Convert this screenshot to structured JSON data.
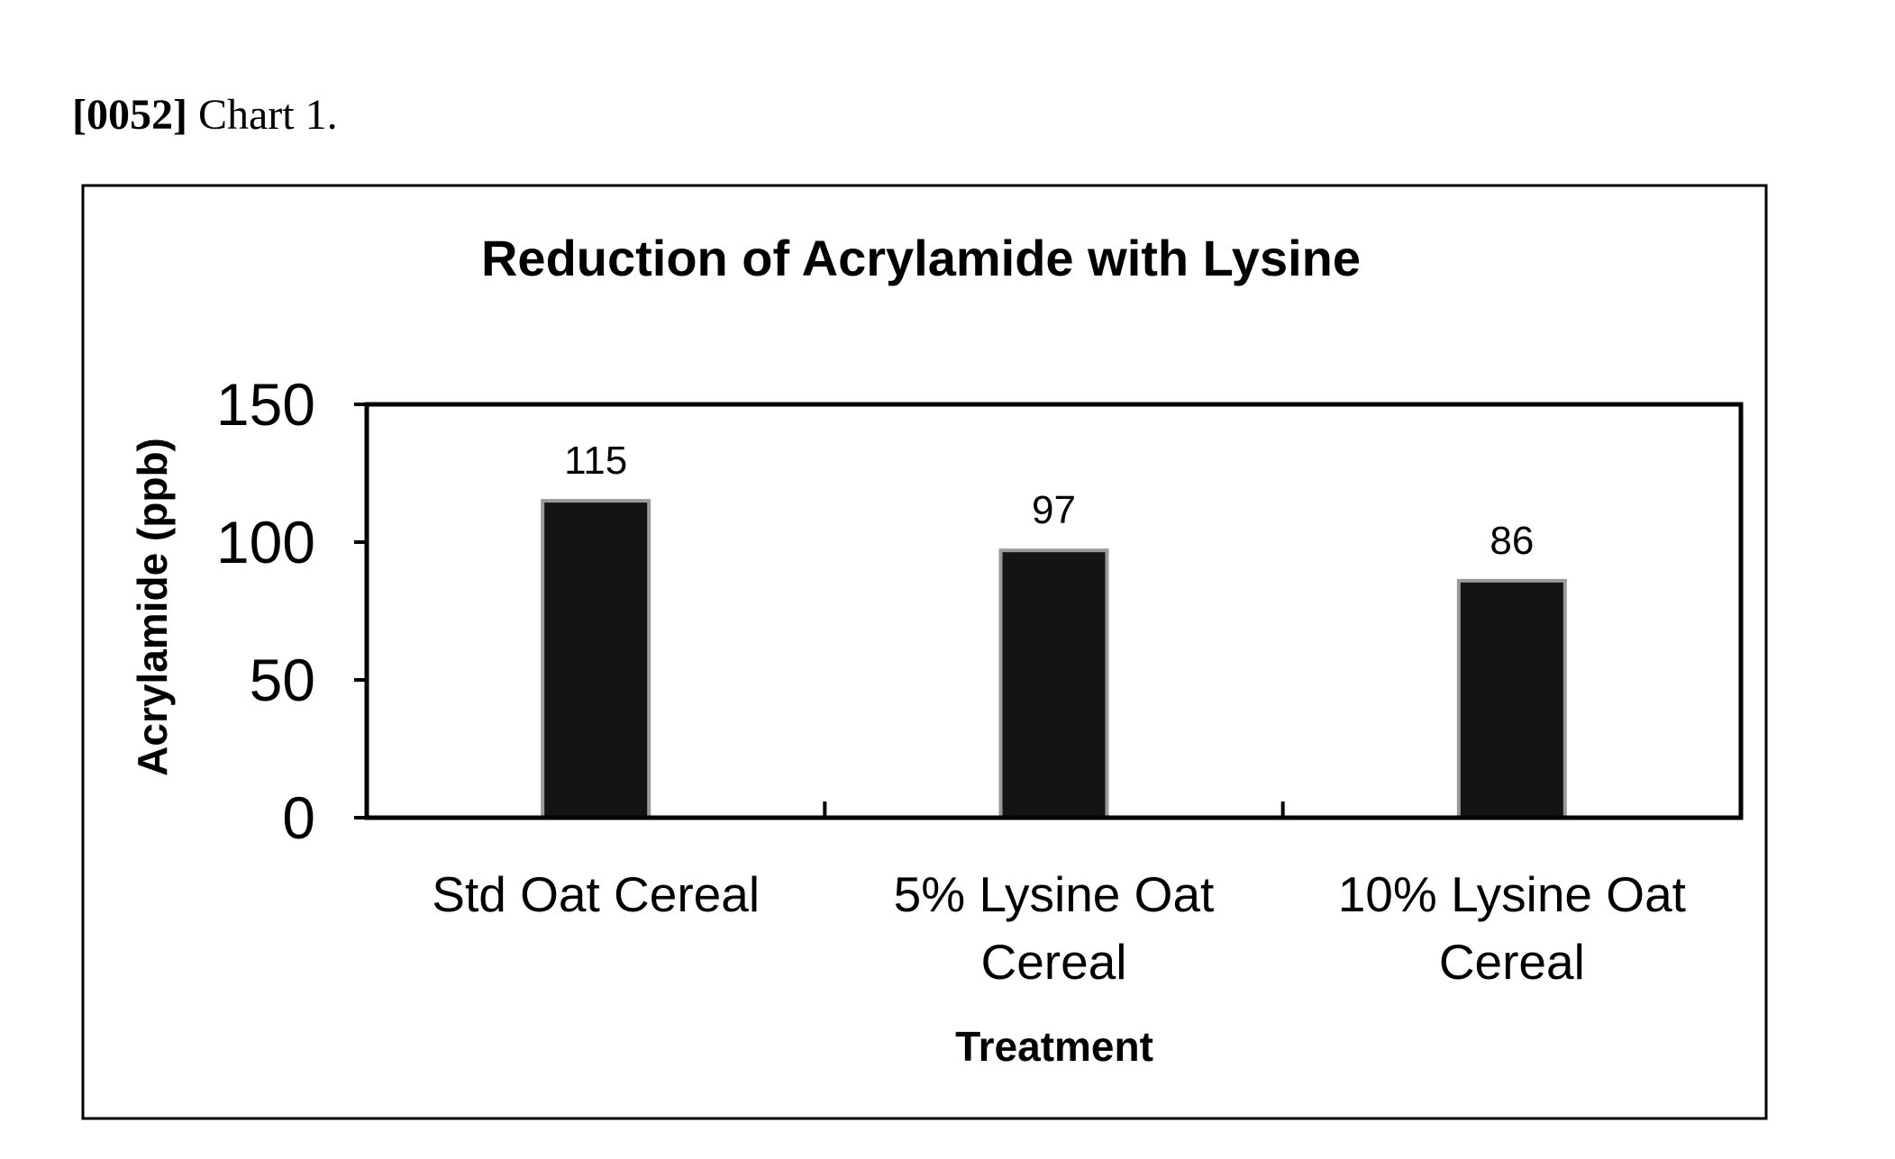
{
  "page": {
    "paragraph_number": "[0052]",
    "paragraph_text": "Chart 1."
  },
  "chart_data": {
    "type": "bar",
    "title": "Reduction of Acrylamide with Lysine",
    "xlabel": "Treatment",
    "ylabel": "Acrylamide (ppb)",
    "categories": [
      [
        "Std Oat Cereal"
      ],
      [
        "5% Lysine Oat",
        "Cereal"
      ],
      [
        "10% Lysine Oat",
        "Cereal"
      ]
    ],
    "values": [
      115,
      97,
      86
    ],
    "data_labels": [
      "115",
      "97",
      "86"
    ],
    "ylim": [
      0,
      150
    ],
    "yticks": [
      0,
      50,
      100,
      150
    ],
    "ytick_labels": [
      "0",
      "50",
      "100",
      "150"
    ],
    "grid": false,
    "legend": "none",
    "colors": {
      "bar_fill": "#141414",
      "bar_edge": "#9a9a9a",
      "axis": "#000000"
    }
  }
}
